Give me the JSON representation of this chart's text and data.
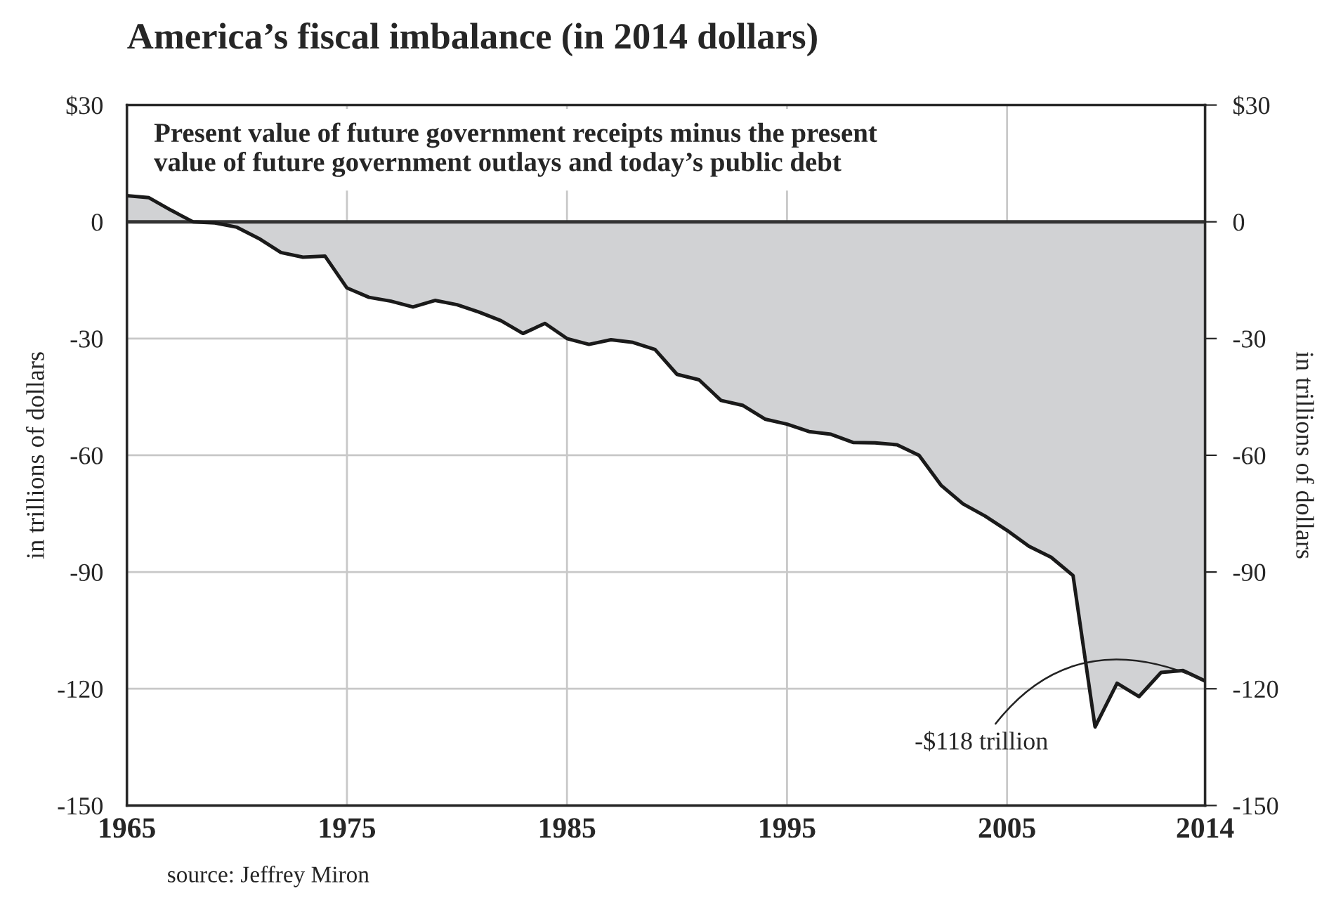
{
  "chart_data": {
    "type": "area",
    "title": "America’s fiscal imbalance (in 2014 dollars)",
    "subtitle": "Present value of future government receipts minus the present\nvalue of future government outlays and today’s public debt",
    "ylabel": "in trillions of dollars",
    "y2label": "in trillions of dollars",
    "x": [
      1965,
      1966,
      1967,
      1968,
      1969,
      1970,
      1971,
      1972,
      1973,
      1974,
      1975,
      1976,
      1977,
      1978,
      1979,
      1980,
      1981,
      1982,
      1983,
      1984,
      1985,
      1986,
      1987,
      1988,
      1989,
      1990,
      1991,
      1992,
      1993,
      1994,
      1995,
      1996,
      1997,
      1998,
      1999,
      2000,
      2001,
      2002,
      2003,
      2004,
      2005,
      2006,
      2007,
      2008,
      2009,
      2010,
      2011,
      2012,
      2013,
      2014
    ],
    "series": [
      {
        "color": "#d1d2d4",
        "values": [
          6.7,
          6.2,
          3,
          0,
          -0.3,
          -1.4,
          -4.3,
          -7.9,
          -9.1,
          -8.8,
          -17,
          -19.4,
          -20.4,
          -21.9,
          -20.2,
          -21.3,
          -23.2,
          -25.4,
          -28.7,
          -26.1,
          -30,
          -31.5,
          -30.3,
          -31,
          -32.8,
          -39.2,
          -40.6,
          -45.9,
          -47.2,
          -50.7,
          -52,
          -53.9,
          -54.6,
          -56.7,
          -56.8,
          -57.3,
          -60,
          -67.7,
          -72.5,
          -75.6,
          -79.3,
          -83.4,
          -86.2,
          -90.9,
          -129.8,
          -118.6,
          -122,
          -115.8,
          -115.3,
          -118
        ]
      }
    ],
    "xlim": [
      1965,
      2014
    ],
    "xticks": [
      1965,
      1975,
      1985,
      1995,
      2005,
      2014
    ],
    "ylim": [
      -150,
      30
    ],
    "yticks": [
      -150,
      -120,
      -90,
      -60,
      -30,
      0,
      {
        "value": 30,
        "label": "$30"
      }
    ],
    "y2lim": [
      -150,
      30
    ],
    "y2ticks": [
      -150,
      -120,
      -90,
      -60,
      -30,
      0,
      {
        "value": 30,
        "label": "$30"
      }
    ],
    "grid": true,
    "annotations": [
      {
        "text": "-$118 trillion",
        "x": 2014,
        "y": -118
      },
      "source: Jeffrey Miron"
    ]
  }
}
